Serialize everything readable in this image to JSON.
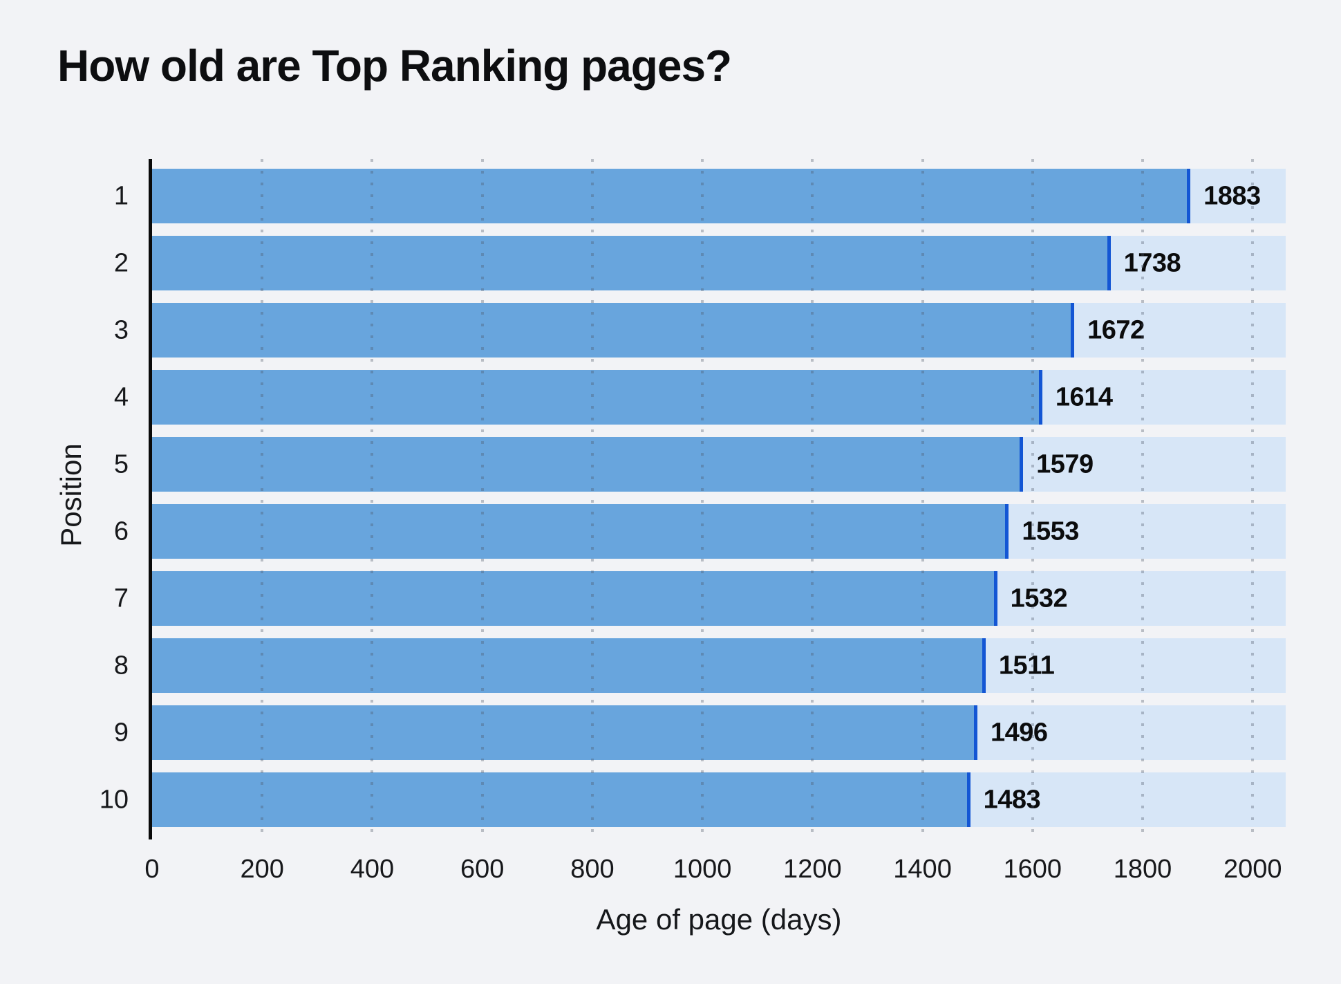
{
  "chart_data": {
    "type": "bar",
    "orientation": "horizontal",
    "title": "How old are Top Ranking pages?",
    "xlabel": "Age of page (days)",
    "ylabel": "Position",
    "categories": [
      "1",
      "2",
      "3",
      "4",
      "5",
      "6",
      "7",
      "8",
      "9",
      "10"
    ],
    "values": [
      1883,
      1738,
      1672,
      1614,
      1579,
      1553,
      1532,
      1511,
      1496,
      1483
    ],
    "xlim": [
      0,
      2060
    ],
    "xticks": [
      0,
      200,
      400,
      600,
      800,
      1000,
      1200,
      1400,
      1600,
      1800,
      2000
    ],
    "grid": "dotted-vertical-at-xticks",
    "legend": "none",
    "value_label_position": "outside-end",
    "colors": {
      "background": "#f2f3f6",
      "bar": "#68a5dd",
      "bar_end_cap": "#1356d4",
      "bar_track": "#d7e6f7",
      "text": "#0d0e10",
      "grid_dot": "#4a5464",
      "axis_line": "#0a0a0a"
    }
  }
}
